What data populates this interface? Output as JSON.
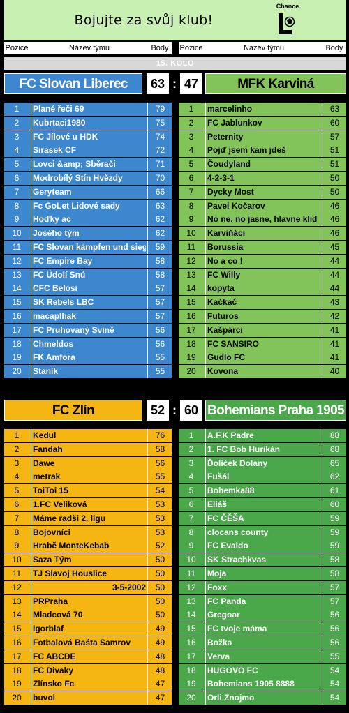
{
  "banner": {
    "title": "Bojujte za svůj klub!",
    "logo_text": "Chance"
  },
  "columns": {
    "pos": "Pozice",
    "team": "Název týmu",
    "pts": "Body"
  },
  "round": "15. KOLO",
  "matches": [
    {
      "home": {
        "name": "FC Slovan Liberec",
        "score": "63",
        "color": "#3d87cf",
        "rows": [
          [
            "1",
            "Plané řeči 69",
            "79"
          ],
          [
            "2",
            "Kubrtaci1980",
            "75"
          ],
          [
            "3",
            "FC Jílové u HDK",
            "74"
          ],
          [
            "4",
            "Sirasek CF",
            "72"
          ],
          [
            "5",
            "Lovci &amp; Sběrači",
            "71"
          ],
          [
            "6",
            "Modrobílý Stín Hvězdy",
            "70"
          ],
          [
            "7",
            "Geryteam",
            "66"
          ],
          [
            "8",
            "Fc GoLet Lidové sady",
            "63"
          ],
          [
            "9",
            "Hoďky ac",
            "62"
          ],
          [
            "10",
            "Josého tým",
            "62"
          ],
          [
            "11",
            "FC Slovan kämpfen und siegen",
            "59"
          ],
          [
            "12",
            "FC Empire Bay",
            "58"
          ],
          [
            "13",
            "FC Údolí Snů",
            "58"
          ],
          [
            "14",
            "CFC Belosi",
            "57"
          ],
          [
            "15",
            "SK Rebels LBC",
            "57"
          ],
          [
            "16",
            "macaplhak",
            "57"
          ],
          [
            "17",
            "FC Pruhovaný Svině",
            "56"
          ],
          [
            "18",
            "Chmeldos",
            "56"
          ],
          [
            "19",
            "FK Amfora",
            "55"
          ],
          [
            "20",
            "Staník",
            "55"
          ]
        ]
      },
      "away": {
        "name": "MFK Karviná",
        "score": "47",
        "color": "#82c45a",
        "rows": [
          [
            "1",
            "marcelinho",
            "63"
          ],
          [
            "2",
            "FC Jablunkov",
            "60"
          ],
          [
            "3",
            "Peternity",
            "57"
          ],
          [
            "4",
            "Pojď jsem kam jdeš",
            "51"
          ],
          [
            "5",
            "Čoudyland",
            "51"
          ],
          [
            "6",
            "4-2-3-1",
            "50"
          ],
          [
            "7",
            "Dycky Most",
            "50"
          ],
          [
            "8",
            "Pavel Kočarov",
            "46"
          ],
          [
            "9",
            "No ne, no jasne, hlavne klid",
            "46"
          ],
          [
            "10",
            "Karviňáci",
            "46"
          ],
          [
            "11",
            "Borussia",
            "45"
          ],
          [
            "12",
            "No a co !",
            "44"
          ],
          [
            "13",
            "FC Willy",
            "44"
          ],
          [
            "14",
            "kopyta",
            "44"
          ],
          [
            "15",
            "Kačkač",
            "43"
          ],
          [
            "16",
            "Futuros",
            "42"
          ],
          [
            "17",
            "Kašpárci",
            "41"
          ],
          [
            "18",
            "FC SANSIRO",
            "41"
          ],
          [
            "19",
            "Gudlo FC",
            "41"
          ],
          [
            "20",
            "Kovona",
            "40"
          ]
        ]
      }
    },
    {
      "home": {
        "name": "FC Zlín",
        "score": "52",
        "color": "#f5b614",
        "rows": [
          [
            "1",
            "Kedul",
            "76"
          ],
          [
            "2",
            "Fandah",
            "58"
          ],
          [
            "3",
            "Dawe",
            "56"
          ],
          [
            "4",
            "metrak",
            "55"
          ],
          [
            "5",
            "ToiToi 15",
            "54"
          ],
          [
            "6",
            "1.FC Veliková",
            "53"
          ],
          [
            "7",
            "Máme radši 2. ligu",
            "53"
          ],
          [
            "8",
            "Bojovníci",
            "53"
          ],
          [
            "9",
            "Hrabě MonteKebab",
            "52"
          ],
          [
            "10",
            "Saza Tým",
            "50"
          ],
          [
            "11",
            "TJ Slavoj Houslice",
            "50"
          ],
          [
            "12",
            "3-5-2002",
            "50"
          ],
          [
            "13",
            "PRPraha",
            "50"
          ],
          [
            "14",
            "Mladcová 70",
            "50"
          ],
          [
            "15",
            "Igorblaf",
            "49"
          ],
          [
            "16",
            "Fotbalová Bašta Samrov",
            "49"
          ],
          [
            "17",
            "FC ABCDE",
            "48"
          ],
          [
            "18",
            "FC Divaky",
            "48"
          ],
          [
            "19",
            "Zlínsko Fc",
            "47"
          ],
          [
            "20",
            "buvol",
            "47"
          ]
        ]
      },
      "away": {
        "name": "Bohemians Praha 1905",
        "score": "60",
        "color": "#4aa84a",
        "rows": [
          [
            "1",
            "A.F.K Padre",
            "88"
          ],
          [
            "2",
            "1. FC Bob Hurikán",
            "68"
          ],
          [
            "3",
            "Ďolíček Dolany",
            "65"
          ],
          [
            "4",
            "Fušál",
            "62"
          ],
          [
            "5",
            "Bohemka88",
            "61"
          ],
          [
            "6",
            "Eliáš",
            "60"
          ],
          [
            "7",
            "FC ČĚŠA",
            "59"
          ],
          [
            "8",
            "clocans county",
            "59"
          ],
          [
            "9",
            "FC Evaldo",
            "59"
          ],
          [
            "10",
            "SK Strachkvas",
            "58"
          ],
          [
            "11",
            "Moja",
            "58"
          ],
          [
            "12",
            "Foxx",
            "57"
          ],
          [
            "13",
            "FC Panda",
            "57"
          ],
          [
            "14",
            "Gregoar",
            "56"
          ],
          [
            "15",
            "FC tvoje máma",
            "56"
          ],
          [
            "16",
            "Božka",
            "56"
          ],
          [
            "17",
            "Verva",
            "55"
          ],
          [
            "18",
            "HUGOVO FC",
            "54"
          ],
          [
            "19",
            "Bohemians 1905 8888",
            "54"
          ],
          [
            "20",
            "Orli Znojmo",
            "54"
          ]
        ]
      }
    }
  ]
}
